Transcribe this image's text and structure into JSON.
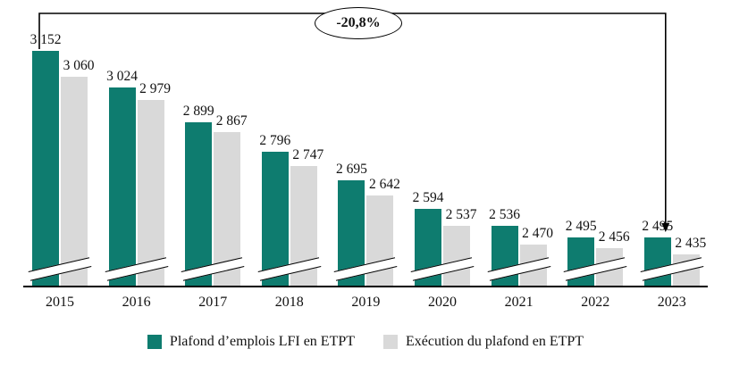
{
  "chart_data": {
    "type": "bar",
    "title": "",
    "xlabel": "",
    "ylabel": "",
    "categories": [
      "2015",
      "2016",
      "2017",
      "2018",
      "2019",
      "2020",
      "2021",
      "2022",
      "2023"
    ],
    "series": [
      {
        "name": "Plafond d’emplois LFI en ETPT",
        "color": "#0e7c6f",
        "values": [
          3152,
          3024,
          2899,
          2796,
          2695,
          2594,
          2536,
          2495,
          2495
        ]
      },
      {
        "name": "Exécution du plafond en ETPT",
        "color": "#d9d9d9",
        "values": [
          3060,
          2979,
          2867,
          2747,
          2642,
          2537,
          2470,
          2456,
          2435
        ]
      }
    ],
    "annotation": "-20,8%",
    "axis_break": true,
    "grid": false,
    "legend_position": "bottom",
    "number_format": "space-thousands"
  }
}
